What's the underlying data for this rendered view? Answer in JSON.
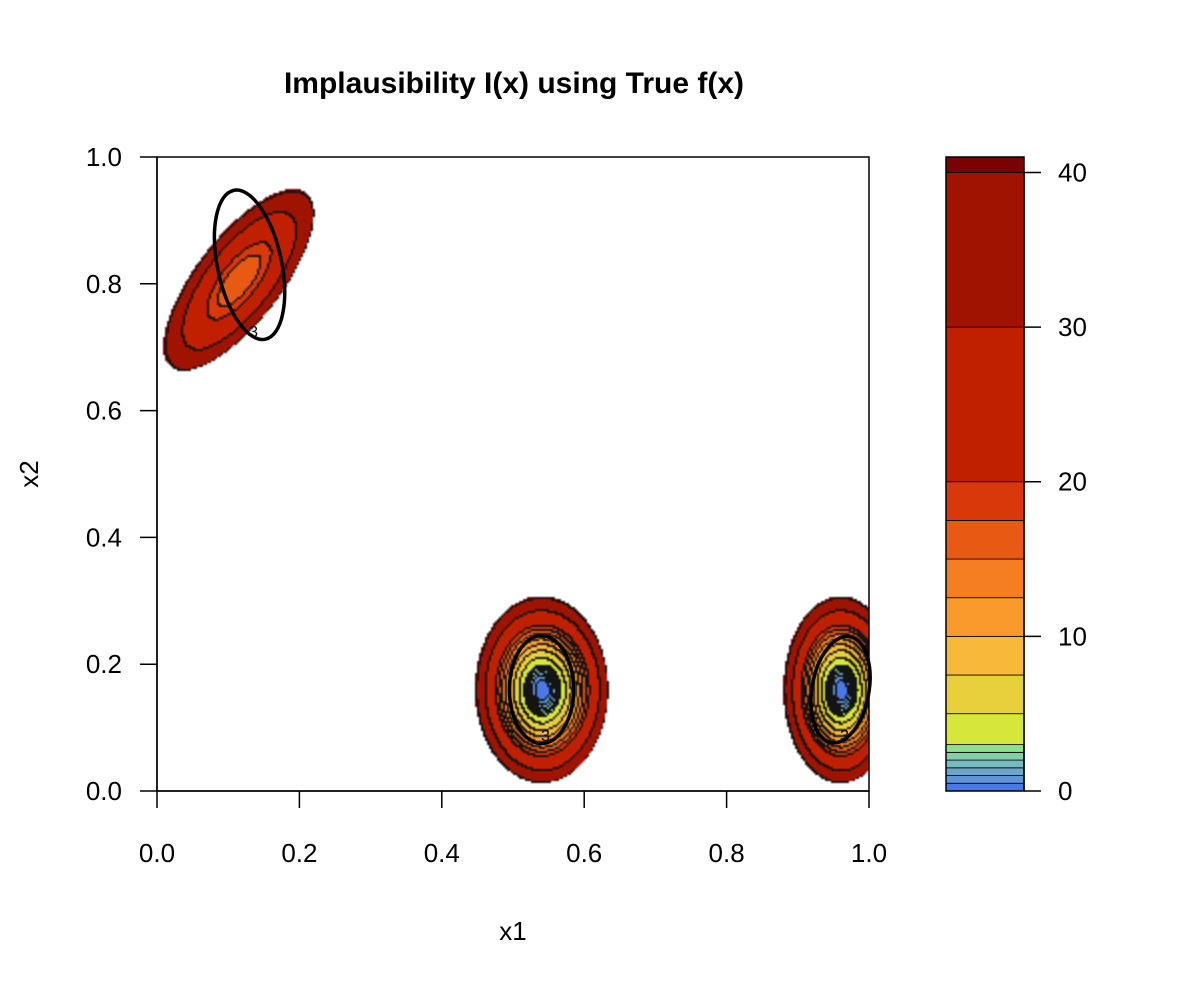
{
  "chart_data": {
    "type": "contour",
    "title": "Implausibility I(x) using True f(x)",
    "xlabel": "x1",
    "ylabel": "x2",
    "xlim": [
      0,
      1
    ],
    "ylim": [
      0,
      1
    ],
    "x_ticks": [
      "0.0",
      "0.2",
      "0.4",
      "0.6",
      "0.8",
      "1.0"
    ],
    "y_ticks": [
      "0.0",
      "0.2",
      "0.4",
      "0.6",
      "0.8",
      "1.0"
    ],
    "legend_ticks": [
      "0",
      "10",
      "20",
      "30",
      "40"
    ],
    "legend_range": [
      0,
      41
    ],
    "legend_placement": "right",
    "levels": [
      0,
      0.5,
      1,
      1.5,
      2,
      2.5,
      3,
      5,
      7.5,
      10,
      12.5,
      15,
      17.5,
      20,
      30,
      40
    ],
    "level_colors": [
      "#4a78e8",
      "#5e94d8",
      "#6aa7cc",
      "#76bbbf",
      "#82cfa9",
      "#8fe08d",
      "#d6e63a",
      "#e8cf3c",
      "#f8b83a",
      "#fb9a2c",
      "#f57e22",
      "#e85a14",
      "#d9380a",
      "#c02000",
      "#a01300",
      "#7a0200"
    ],
    "cutoff_contour": {
      "value": 3,
      "label": "3",
      "minima": [
        {
          "x1": 0.13,
          "x2": 0.83
        },
        {
          "x1": 0.54,
          "x2": 0.16
        },
        {
          "x1": 0.96,
          "x2": 0.16
        }
      ]
    },
    "grid": false
  }
}
